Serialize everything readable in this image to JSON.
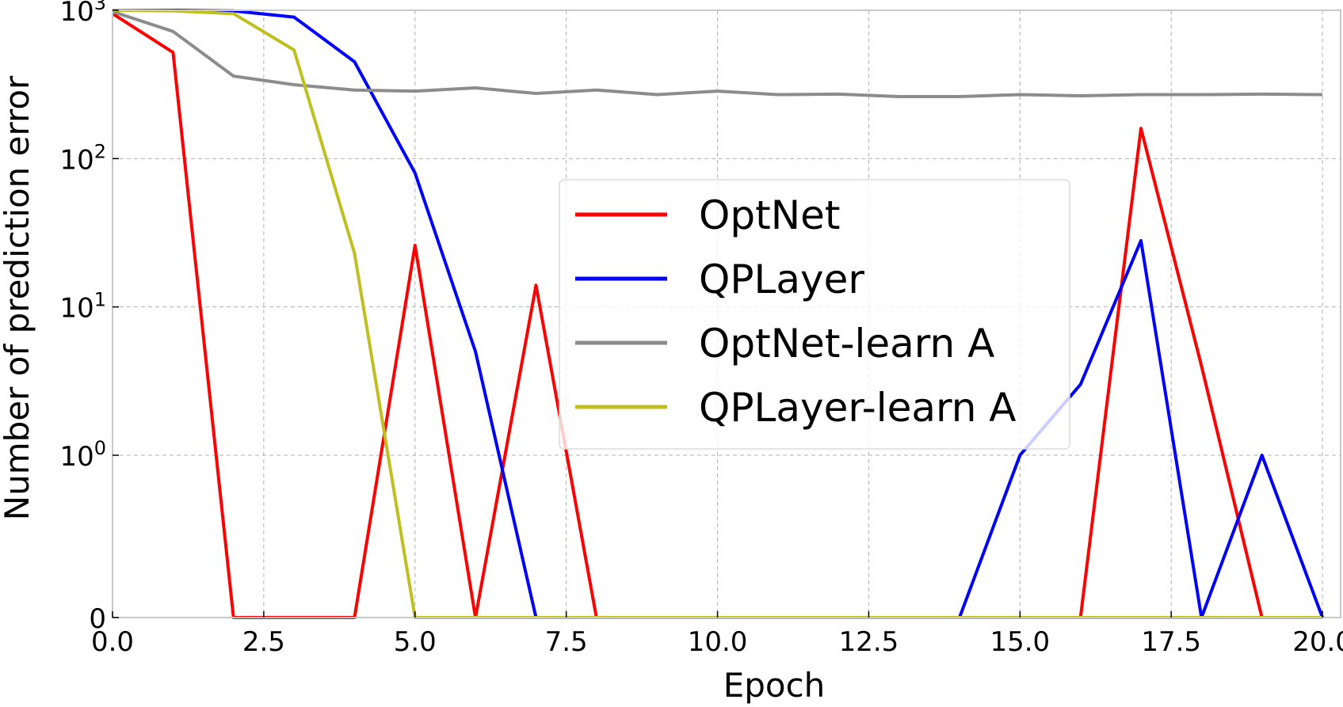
{
  "chart_data": {
    "type": "line",
    "xlabel": "Epoch",
    "ylabel": "Number of prediction error",
    "xlim": [
      0,
      20.3
    ],
    "x_ticks": [
      0,
      2.5,
      5,
      7.5,
      10,
      12.5,
      15,
      17.5,
      20
    ],
    "x_tick_labels": [
      "0.0",
      "2.5",
      "5.0",
      "7.5",
      "10.0",
      "12.5",
      "15.0",
      "17.5",
      "20.0"
    ],
    "yscale": "symlog",
    "ylim": [
      0,
      1000
    ],
    "y_ticks": [
      0,
      1,
      10,
      100,
      1000
    ],
    "y_tick_labels": [
      {
        "base": "0",
        "exp": ""
      },
      {
        "base": "10",
        "exp": "0"
      },
      {
        "base": "10",
        "exp": "1"
      },
      {
        "base": "10",
        "exp": "2"
      },
      {
        "base": "10",
        "exp": "3"
      }
    ],
    "grid": true,
    "legend_position": "center-right",
    "x": [
      0,
      1,
      2,
      3,
      4,
      5,
      6,
      7,
      8,
      9,
      10,
      11,
      12,
      13,
      14,
      15,
      16,
      17,
      18,
      19,
      20
    ],
    "series": [
      {
        "name": "OptNet",
        "color": "#ff0000",
        "values": [
          950,
          520,
          0,
          0,
          0,
          26,
          0,
          14,
          0,
          0,
          0,
          0,
          0,
          0,
          0,
          0,
          0,
          160,
          4,
          0,
          0
        ]
      },
      {
        "name": "QPLayer",
        "color": "#0000ff",
        "values": [
          1000,
          1000,
          990,
          900,
          450,
          80,
          5,
          0,
          0,
          0,
          0,
          0,
          0,
          0,
          0,
          1,
          3,
          28,
          0,
          1,
          0
        ]
      },
      {
        "name": "OptNet-learn A",
        "color": "#8c8c8c",
        "values": [
          980,
          720,
          360,
          315,
          290,
          285,
          300,
          275,
          290,
          270,
          285,
          270,
          272,
          262,
          262,
          270,
          265,
          270,
          270,
          272,
          270
        ]
      },
      {
        "name": "QPLayer-learn A",
        "color": "#bfbf20",
        "values": [
          1000,
          990,
          950,
          540,
          23,
          0,
          0,
          0,
          0,
          0,
          0,
          0,
          0,
          0,
          0,
          0,
          0,
          0,
          0,
          0,
          0
        ]
      }
    ]
  }
}
